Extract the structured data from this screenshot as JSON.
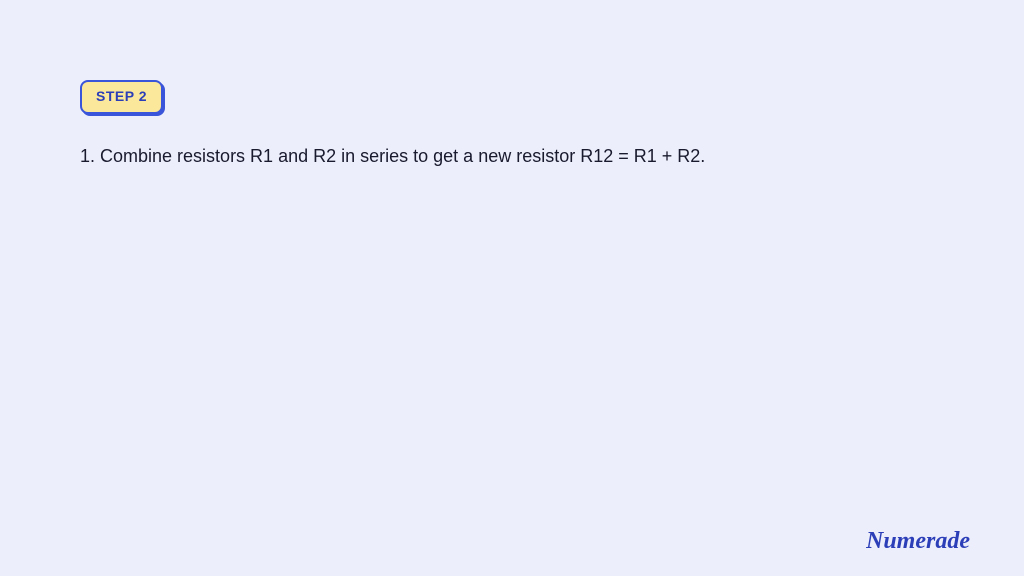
{
  "page": {
    "background_color": "#eceefb"
  },
  "step_badge": {
    "label": "STEP 2",
    "text_color": "#2d3fb8",
    "background_color": "#fce89a",
    "border_color": "#3a55d9",
    "font_size": 14,
    "font_weight": 700,
    "border_radius": 8
  },
  "content": {
    "body_text": "1. Combine resistors R1 and R2 in series to get a new resistor R12 = R1 + R2.",
    "text_color": "#1a1a2e",
    "font_size": 18
  },
  "logo": {
    "text": "Numerade",
    "color": "#2d3fb8",
    "font_size": 24
  }
}
